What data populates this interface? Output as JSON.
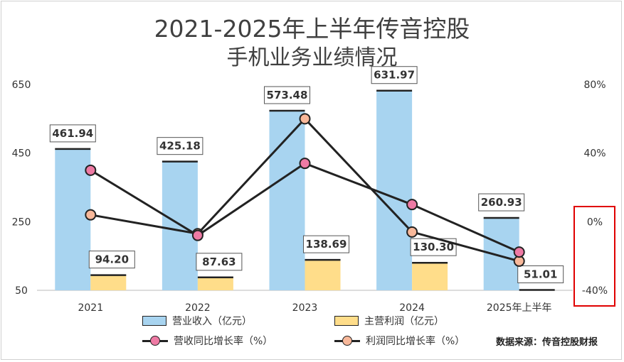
{
  "chart_data": {
    "type": "bar",
    "title": "2021-2025年上半年传音控股",
    "subtitle": "手机业务业绩情况",
    "categories": [
      "2021",
      "2022",
      "2023",
      "2024",
      "2025年上半年"
    ],
    "series": [
      {
        "name": "营业收入（亿元）",
        "kind": "bar",
        "axis": "left",
        "values": [
          461.94,
          425.18,
          573.48,
          631.97,
          260.93
        ],
        "labels": [
          "461.94",
          "425.18",
          "573.48",
          "631.97",
          "260.93"
        ]
      },
      {
        "name": "主营利润（亿元）",
        "kind": "bar",
        "axis": "left",
        "values": [
          94.2,
          87.63,
          138.69,
          130.3,
          51.01
        ],
        "labels": [
          "94.20",
          "87.63",
          "138.69",
          "130.30",
          "51.01"
        ]
      },
      {
        "name": "营收同比增长率（%）",
        "kind": "line",
        "axis": "right",
        "values": [
          30,
          -8,
          34,
          10,
          -17.7
        ]
      },
      {
        "name": "利润同比增长率（%）",
        "kind": "line",
        "axis": "right",
        "values": [
          4,
          -7,
          60,
          -6,
          -23
        ]
      }
    ],
    "y_left": {
      "min": 50,
      "max": 650,
      "ticks": [
        "650",
        "450",
        "250",
        "50"
      ],
      "tick_values": [
        650,
        450,
        250,
        50
      ]
    },
    "y_right": {
      "min": -40,
      "max": 80,
      "ticks": [
        "80%",
        "40%",
        "0%",
        "-40%"
      ],
      "tick_values": [
        80,
        40,
        0,
        -40
      ]
    },
    "grid": false,
    "legend_position": "bottom",
    "source": "数据来源：传音控股财报"
  },
  "colors": {
    "revenue_bar": "#a8d4f0",
    "profit_bar": "#ffdd8a",
    "revenue_growth_dot": "#ee7aa4",
    "profit_growth_dot": "#f8b89a",
    "line": "#222222",
    "highlight_box": "#e00000"
  }
}
